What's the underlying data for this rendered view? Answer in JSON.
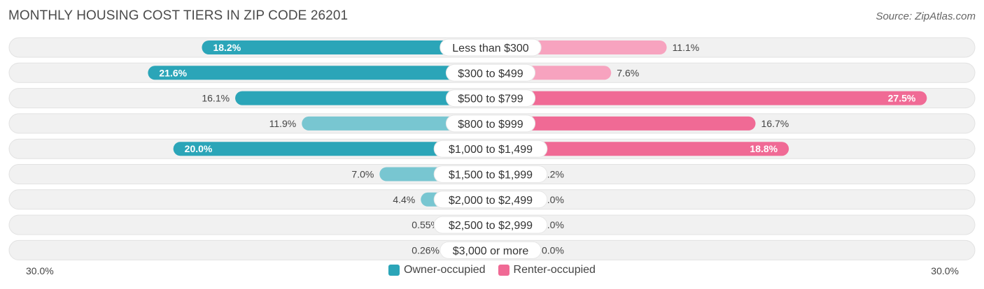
{
  "title": "MONTHLY HOUSING COST TIERS IN ZIP CODE 26201",
  "source": "Source: ZipAtlas.com",
  "colors": {
    "owner": "#2ba5b8",
    "owner_light": "#78c6d1",
    "renter": "#f06a95",
    "renter_light": "#f7a3bf",
    "track": "#f1f1f1"
  },
  "axis": {
    "left_label": "30.0%",
    "right_label": "30.0%"
  },
  "legend": {
    "owner": "Owner-occupied",
    "renter": "Renter-occupied"
  },
  "chart_data": {
    "type": "bar",
    "orientation": "diverging-horizontal",
    "title": "MONTHLY HOUSING COST TIERS IN ZIP CODE 26201",
    "xlim": [
      -30,
      30
    ],
    "categories": [
      "Less than $300",
      "$300 to $499",
      "$500 to $799",
      "$800 to $999",
      "$1,000 to $1,499",
      "$1,500 to $1,999",
      "$2,000 to $2,499",
      "$2,500 to $2,999",
      "$3,000 or more"
    ],
    "series": [
      {
        "name": "Owner-occupied",
        "values": [
          18.2,
          21.6,
          16.1,
          11.9,
          20.0,
          7.0,
          4.4,
          0.55,
          0.26
        ],
        "labels": [
          "18.2%",
          "21.6%",
          "16.1%",
          "11.9%",
          "20.0%",
          "7.0%",
          "4.4%",
          "0.55%",
          "0.26%"
        ]
      },
      {
        "name": "Renter-occupied",
        "values": [
          11.1,
          7.6,
          27.5,
          16.7,
          18.8,
          2.2,
          0.0,
          0.0,
          0.0
        ],
        "labels": [
          "11.1%",
          "7.6%",
          "27.5%",
          "16.7%",
          "18.8%",
          "2.2%",
          "0.0%",
          "0.0%",
          "0.0%"
        ]
      }
    ],
    "legend_position": "bottom-center"
  }
}
